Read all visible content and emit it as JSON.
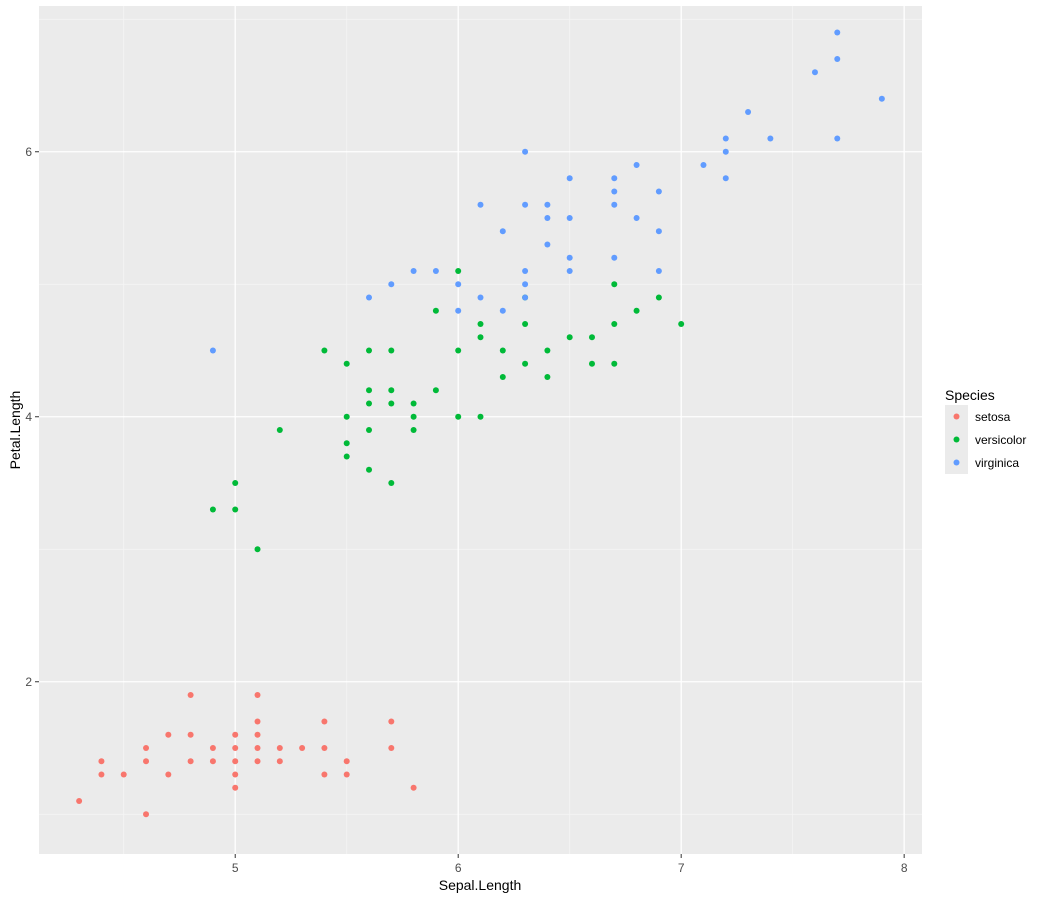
{
  "chart_data": {
    "type": "scatter",
    "xlabel": "Sepal.Length",
    "ylabel": "Petal.Length",
    "xlim": [
      4.12,
      8.08
    ],
    "ylim": [
      0.7,
      7.1
    ],
    "x_ticks": [
      5,
      6,
      7,
      8
    ],
    "y_ticks": [
      2,
      4,
      6
    ],
    "x_tick_labels": [
      "5",
      "6",
      "7",
      "8"
    ],
    "y_tick_labels": [
      "2",
      "4",
      "6"
    ],
    "grid": true,
    "legend": {
      "title": "Species",
      "position": "right"
    },
    "series": [
      {
        "name": "setosa",
        "color": "#F8766D",
        "points": [
          [
            4.3,
            1.1
          ],
          [
            4.4,
            1.4
          ],
          [
            4.4,
            1.3
          ],
          [
            4.5,
            1.3
          ],
          [
            4.6,
            1.5
          ],
          [
            4.6,
            1.4
          ],
          [
            4.6,
            1.0
          ],
          [
            4.7,
            1.6
          ],
          [
            4.7,
            1.3
          ],
          [
            4.8,
            1.9
          ],
          [
            4.8,
            1.6
          ],
          [
            4.8,
            1.4
          ],
          [
            4.9,
            1.5
          ],
          [
            4.9,
            1.4
          ],
          [
            5.0,
            1.6
          ],
          [
            5.0,
            1.5
          ],
          [
            5.0,
            1.4
          ],
          [
            5.0,
            1.3
          ],
          [
            5.0,
            1.2
          ],
          [
            5.1,
            1.9
          ],
          [
            5.1,
            1.7
          ],
          [
            5.1,
            1.6
          ],
          [
            5.1,
            1.5
          ],
          [
            5.1,
            1.4
          ],
          [
            5.2,
            1.5
          ],
          [
            5.2,
            1.4
          ],
          [
            5.3,
            1.5
          ],
          [
            5.4,
            1.7
          ],
          [
            5.4,
            1.5
          ],
          [
            5.4,
            1.3
          ],
          [
            5.5,
            1.4
          ],
          [
            5.5,
            1.3
          ],
          [
            5.7,
            1.7
          ],
          [
            5.7,
            1.5
          ],
          [
            5.8,
            1.2
          ]
        ]
      },
      {
        "name": "versicolor",
        "color": "#00BA38",
        "points": [
          [
            4.9,
            3.3
          ],
          [
            5.0,
            3.5
          ],
          [
            5.0,
            3.3
          ],
          [
            5.1,
            3.0
          ],
          [
            5.2,
            3.9
          ],
          [
            5.4,
            4.5
          ],
          [
            5.5,
            4.4
          ],
          [
            5.5,
            4.0
          ],
          [
            5.5,
            3.8
          ],
          [
            5.5,
            3.7
          ],
          [
            5.6,
            4.5
          ],
          [
            5.6,
            4.2
          ],
          [
            5.6,
            4.1
          ],
          [
            5.6,
            3.9
          ],
          [
            5.6,
            3.6
          ],
          [
            5.7,
            4.5
          ],
          [
            5.7,
            4.2
          ],
          [
            5.7,
            4.1
          ],
          [
            5.7,
            3.5
          ],
          [
            5.8,
            4.1
          ],
          [
            5.8,
            4.0
          ],
          [
            5.8,
            3.9
          ],
          [
            5.9,
            4.8
          ],
          [
            5.9,
            4.2
          ],
          [
            6.0,
            5.1
          ],
          [
            6.0,
            4.5
          ],
          [
            6.0,
            4.0
          ],
          [
            6.1,
            4.7
          ],
          [
            6.1,
            4.6
          ],
          [
            6.1,
            4.0
          ],
          [
            6.2,
            4.5
          ],
          [
            6.2,
            4.3
          ],
          [
            6.3,
            4.9
          ],
          [
            6.3,
            4.7
          ],
          [
            6.3,
            4.4
          ],
          [
            6.4,
            4.5
          ],
          [
            6.4,
            4.3
          ],
          [
            6.5,
            4.6
          ],
          [
            6.6,
            4.6
          ],
          [
            6.6,
            4.4
          ],
          [
            6.7,
            5.0
          ],
          [
            6.7,
            4.7
          ],
          [
            6.7,
            4.4
          ],
          [
            6.8,
            4.8
          ],
          [
            6.9,
            4.9
          ],
          [
            7.0,
            4.7
          ]
        ]
      },
      {
        "name": "virginica",
        "color": "#619CFF",
        "points": [
          [
            4.9,
            4.5
          ],
          [
            5.6,
            4.9
          ],
          [
            5.7,
            5.0
          ],
          [
            5.8,
            5.1
          ],
          [
            5.9,
            5.1
          ],
          [
            6.0,
            5.0
          ],
          [
            6.0,
            4.8
          ],
          [
            6.1,
            5.6
          ],
          [
            6.1,
            4.9
          ],
          [
            6.2,
            5.4
          ],
          [
            6.2,
            4.8
          ],
          [
            6.3,
            6.0
          ],
          [
            6.3,
            5.6
          ],
          [
            6.3,
            5.1
          ],
          [
            6.3,
            5.0
          ],
          [
            6.3,
            4.9
          ],
          [
            6.4,
            5.6
          ],
          [
            6.4,
            5.5
          ],
          [
            6.4,
            5.3
          ],
          [
            6.5,
            5.8
          ],
          [
            6.5,
            5.5
          ],
          [
            6.5,
            5.2
          ],
          [
            6.5,
            5.1
          ],
          [
            6.7,
            5.8
          ],
          [
            6.7,
            5.7
          ],
          [
            6.7,
            5.6
          ],
          [
            6.7,
            5.2
          ],
          [
            6.8,
            5.9
          ],
          [
            6.8,
            5.5
          ],
          [
            6.9,
            5.7
          ],
          [
            6.9,
            5.4
          ],
          [
            6.9,
            5.1
          ],
          [
            7.1,
            5.9
          ],
          [
            7.2,
            6.1
          ],
          [
            7.2,
            6.0
          ],
          [
            7.2,
            5.8
          ],
          [
            7.3,
            6.3
          ],
          [
            7.4,
            6.1
          ],
          [
            7.6,
            6.6
          ],
          [
            7.7,
            6.9
          ],
          [
            7.7,
            6.7
          ],
          [
            7.7,
            6.1
          ],
          [
            7.9,
            6.4
          ]
        ]
      }
    ]
  }
}
